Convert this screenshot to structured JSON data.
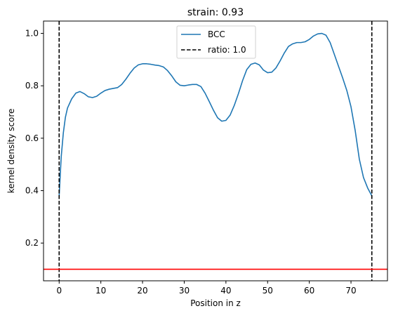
{
  "chart_data": {
    "type": "line",
    "title": "strain: 0.93",
    "xlabel": "Position in z",
    "ylabel": "kernel density score",
    "xlim": [
      -3.75,
      78.75
    ],
    "ylim": [
      0.056,
      1.047
    ],
    "xticks": [
      0,
      10,
      20,
      30,
      40,
      50,
      60,
      70
    ],
    "yticks": [
      0.2,
      0.4,
      0.6,
      0.8,
      1.0
    ],
    "ytick_labels": [
      "0.2",
      "0.4",
      "0.6",
      "0.8",
      "1.0"
    ],
    "series": [
      {
        "name": "BCC",
        "color": "#1f77b4",
        "style": "solid",
        "x": [
          0,
          0.5,
          1,
          1.5,
          2,
          3,
          4,
          5,
          6,
          7,
          8,
          9,
          10,
          11,
          12,
          13,
          14,
          15,
          16,
          17,
          18,
          19,
          20,
          21,
          22,
          23,
          24,
          25,
          26,
          27,
          28,
          29,
          30,
          31,
          32,
          33,
          34,
          35,
          36,
          37,
          38,
          39,
          40,
          41,
          42,
          43,
          44,
          45,
          46,
          47,
          48,
          49,
          50,
          51,
          52,
          53,
          54,
          55,
          56,
          57,
          58,
          59,
          60,
          61,
          62,
          63,
          64,
          65,
          66,
          67,
          68,
          69,
          70,
          71,
          72,
          73,
          74,
          75
        ],
        "y": [
          0.38,
          0.53,
          0.62,
          0.68,
          0.715,
          0.75,
          0.772,
          0.778,
          0.77,
          0.758,
          0.755,
          0.76,
          0.772,
          0.782,
          0.787,
          0.79,
          0.793,
          0.805,
          0.825,
          0.848,
          0.868,
          0.88,
          0.884,
          0.884,
          0.882,
          0.879,
          0.877,
          0.872,
          0.858,
          0.838,
          0.815,
          0.802,
          0.8,
          0.803,
          0.805,
          0.805,
          0.797,
          0.772,
          0.74,
          0.707,
          0.678,
          0.665,
          0.668,
          0.688,
          0.725,
          0.77,
          0.82,
          0.862,
          0.882,
          0.887,
          0.88,
          0.86,
          0.85,
          0.852,
          0.868,
          0.895,
          0.925,
          0.95,
          0.96,
          0.965,
          0.965,
          0.968,
          0.977,
          0.99,
          0.998,
          1.0,
          0.993,
          0.965,
          0.92,
          0.875,
          0.83,
          0.782,
          0.72,
          0.63,
          0.52,
          0.45,
          0.41,
          0.38
        ]
      }
    ],
    "reference_lines": [
      {
        "name": "ratio: 1.0",
        "orientation": "vertical",
        "values": [
          0,
          75
        ],
        "color": "#000000",
        "style": "dashed"
      },
      {
        "name": "",
        "orientation": "horizontal",
        "values": [
          0.1
        ],
        "color": "#ff0000",
        "style": "solid"
      }
    ],
    "legend": {
      "placement": "upper-center",
      "entries": [
        "BCC",
        "ratio: 1.0"
      ]
    },
    "grid": false
  }
}
